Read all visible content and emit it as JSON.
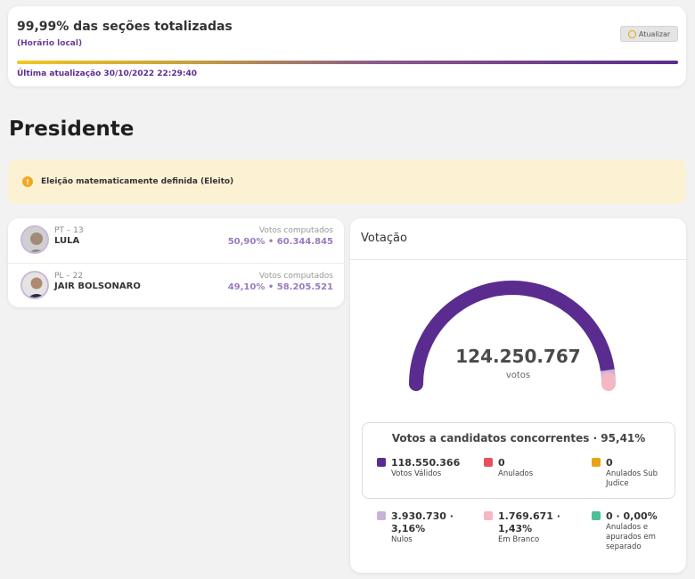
{
  "top": {
    "title": "99,99% das seções totalizadas",
    "subtitle": "(Horário local)",
    "refresh_label": "Atualizar",
    "progress_fraction": 0.9999,
    "last_update": "Última atualização 30/10/2022 22:29:40"
  },
  "page_title": "Presidente",
  "alert": {
    "text": "Eleição matematicamente definida (Eleito)",
    "icon": "info-icon"
  },
  "candidates": [
    {
      "party": "PT – 13",
      "name": "LULA",
      "votes_label": "Votos computados",
      "percent": "50,90%",
      "sep": "•",
      "votes": "60.344.845"
    },
    {
      "party": "PL – 22",
      "name": "JAIR BOLSONARO",
      "votes_label": "Votos computados",
      "percent": "49,10%",
      "sep": "•",
      "votes": "58.205.521"
    }
  ],
  "votacao": {
    "header": "Votação",
    "total": "124.250.767",
    "total_label": "votos",
    "valid_title": "Votos a candidatos concorrentes · 95,41%",
    "stats": [
      {
        "value": "118.550.366",
        "label": "Votos Válidos",
        "color": "#5b2c8f"
      },
      {
        "value": "0",
        "label": "Anulados",
        "color": "#e8505b"
      },
      {
        "value": "0",
        "label": "Anulados Sub Judice",
        "color": "#e8a317"
      },
      {
        "value": "3.930.730 · 3,16%",
        "label": "Nulos",
        "color": "#c9b3d9"
      },
      {
        "value": "1.769.671 · 1,43%",
        "label": "Em Branco",
        "color": "#f5b7c4"
      },
      {
        "value": "0 · 0,00%",
        "label": "Anulados e apurados em separado",
        "color": "#4cbf9a"
      }
    ],
    "gauge_fractions": {
      "valid": 0.9541,
      "null": 0.0316,
      "blank": 0.0143
    }
  },
  "colors": {
    "accent": "#5b2c8f",
    "alert_bg": "#fdf1d4"
  }
}
